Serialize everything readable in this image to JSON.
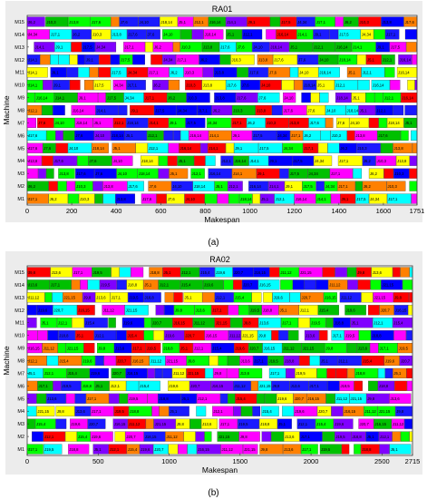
{
  "chart_data": [
    {
      "type": "gantt",
      "title": "RA01",
      "xlabel": "Makespan",
      "ylabel": "Machine",
      "xlim": [
        0,
        1751
      ],
      "xticks": [
        0,
        200,
        400,
        600,
        800,
        1000,
        1200,
        1400,
        1600,
        1751
      ],
      "machines": [
        "M1",
        "M2",
        "M3",
        "M4",
        "M5",
        "M6",
        "M7",
        "M8",
        "M9",
        "M10",
        "M11",
        "M12",
        "M13",
        "M14",
        "M15"
      ],
      "caption": "(a)",
      "operation_label_format": "job,operation",
      "sample_labels": [
        "J17,1",
        "J6,2",
        "J10,3",
        "J13,8",
        "J17,6",
        "J7,6",
        "J4,10",
        "J18,14",
        "J5,1",
        "J12,1",
        "J16,14",
        "J14,1",
        "J9,1",
        "J17,5",
        "J4,34"
      ]
    },
    {
      "type": "gantt",
      "title": "RA02",
      "xlabel": "Makespan",
      "ylabel": "Machine",
      "xlim": [
        0,
        2715
      ],
      "xticks": [
        0,
        500,
        1000,
        1500,
        2000,
        2500,
        2715
      ],
      "machines": [
        "M1",
        "M2",
        "M3",
        "M4",
        "M5",
        "M6",
        "M7",
        "M8",
        "M9",
        "M10",
        "M11",
        "M12",
        "M13",
        "M14",
        "M15"
      ],
      "caption": "(b)",
      "operation_label_format": "job,operation",
      "sample_labels": [
        "J17,1",
        "J19,5",
        "J18,8",
        "J5,1",
        "J12,1",
        "J15,4",
        "J19,6",
        "J20,7",
        "J16,15",
        "J11,12",
        "J21,15",
        "J9,8",
        "J13,6"
      ]
    }
  ],
  "palette": [
    "#ff00ff",
    "#00ff00",
    "#0000ff",
    "#ffff00",
    "#ff8000",
    "#00ffff",
    "#ff0000",
    "#8000ff",
    "#00c000",
    "#1a1aff"
  ]
}
